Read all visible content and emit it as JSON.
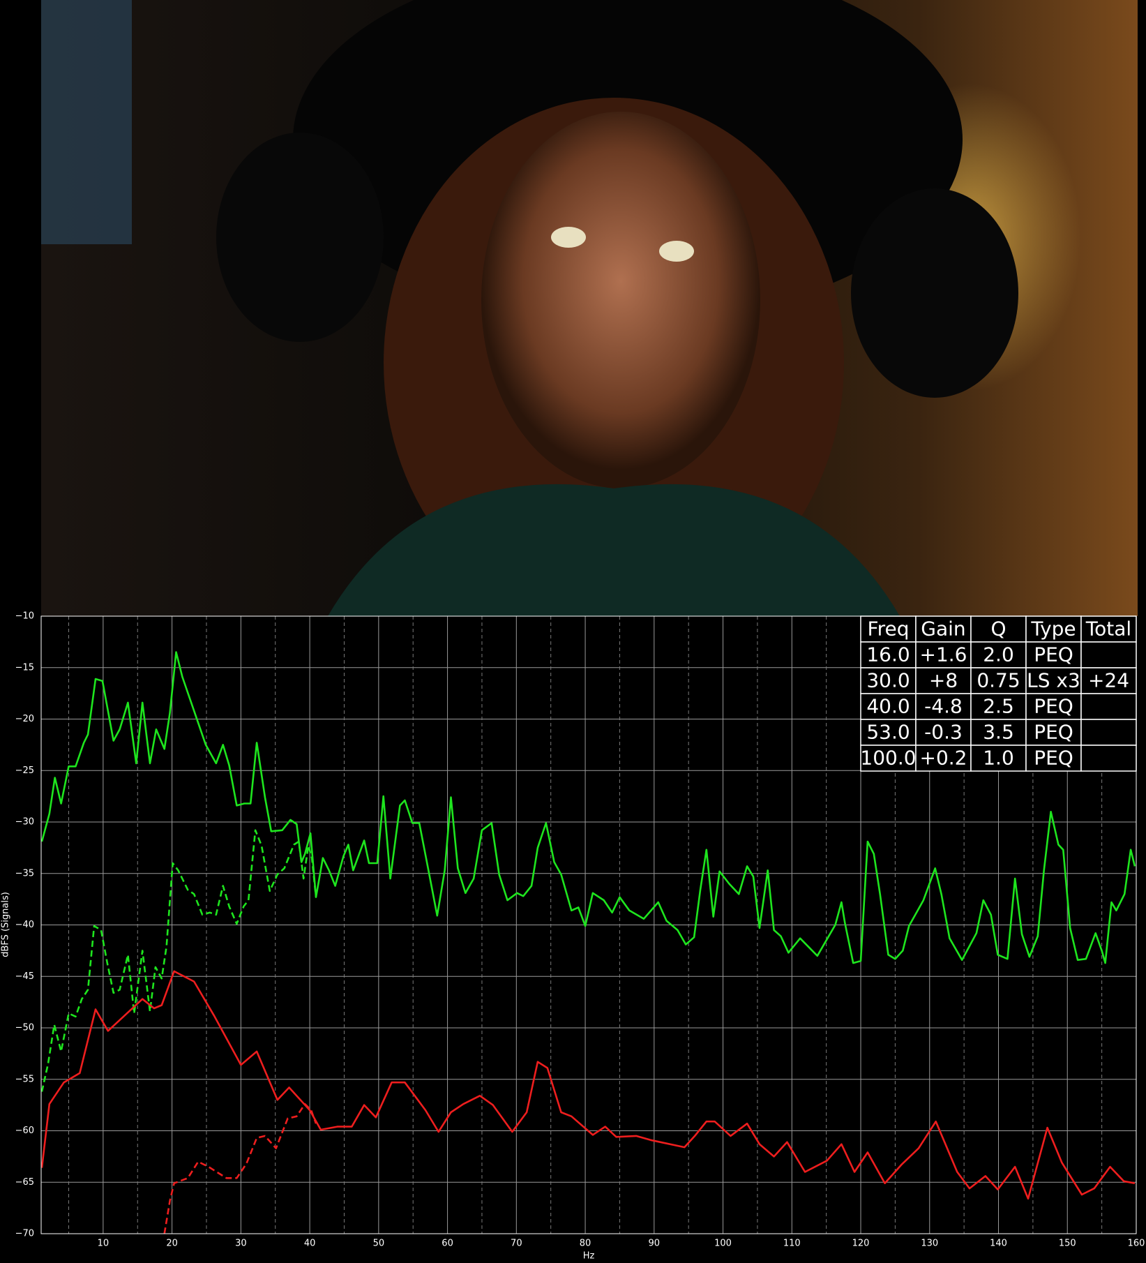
{
  "chart_data": {
    "type": "line",
    "xlabel": "Hz",
    "ylabel": "dBFS (Signals)",
    "xlim": [
      1,
      160
    ],
    "ylim": [
      -70,
      -10
    ],
    "xticks": [
      10,
      20,
      30,
      40,
      50,
      60,
      70,
      80,
      90,
      100,
      110,
      120,
      130,
      140,
      150,
      160
    ],
    "x_minor_ticks": [
      5,
      15,
      25,
      35,
      45,
      55,
      65,
      75,
      85,
      95,
      105,
      115,
      125,
      135,
      145,
      155
    ],
    "yticks": [
      {
        "value": -70,
        "label": "−70"
      },
      {
        "value": -65,
        "label": "−65"
      },
      {
        "value": -60,
        "label": "−60"
      },
      {
        "value": -55,
        "label": "−55"
      },
      {
        "value": -50,
        "label": "−50"
      },
      {
        "value": -45,
        "label": "−45"
      },
      {
        "value": -40,
        "label": "−40"
      },
      {
        "value": -35,
        "label": "−35"
      },
      {
        "value": -30,
        "label": "−30"
      },
      {
        "value": -25,
        "label": "−25"
      },
      {
        "value": -20,
        "label": "−20"
      },
      {
        "value": -15,
        "label": "−15"
      },
      {
        "value": -10,
        "label": "−10"
      }
    ],
    "grid": true,
    "series": [
      {
        "color": "#1ee51e",
        "linestyle": "solid",
        "x": [
          1.1,
          2.2,
          3.0,
          3.9,
          5.0,
          6.0,
          7.2,
          7.8,
          8.9,
          9.9,
          11.5,
          12.4,
          13.6,
          14.8,
          15.7,
          16.8,
          17.7,
          18.9,
          19.7,
          20.6,
          21.5,
          23.2,
          24.9,
          26.4,
          27.4,
          28.3,
          29.4,
          30.5,
          31.4,
          32.3,
          33.5,
          34.4,
          36.0,
          37.2,
          38.1,
          38.8,
          39.3,
          40.1,
          40.9,
          41.9,
          42.8,
          43.7,
          44.9,
          45.6,
          46.3,
          47.9,
          48.6,
          49.8,
          50.7,
          51.7,
          53.1,
          53.8,
          54.9,
          55.9,
          57.0,
          58.5,
          59.6,
          60.5,
          61.5,
          62.6,
          63.8,
          65.0,
          66.4,
          67.5,
          68.7,
          70.1,
          71.0,
          72.2,
          73.1,
          74.3,
          75.5,
          76.5,
          78.0,
          79.0,
          80.0,
          81.1,
          82.7,
          83.9,
          85.0,
          86.4,
          88.5,
          90.6,
          91.8,
          93.4,
          94.6,
          95.8,
          96.7,
          97.6,
          98.6,
          99.5,
          100.9,
          102.3,
          103.5,
          104.4,
          105.3,
          106.5,
          107.4,
          108.4,
          109.5,
          111.2,
          113.7,
          116.3,
          117.2,
          117.7,
          118.9,
          120.0,
          121.0,
          121.9,
          122.8,
          124.0,
          125.0,
          126.1,
          127.0,
          129.1,
          130.8,
          131.7,
          132.9,
          134.7,
          136.8,
          137.8,
          138.9,
          139.9,
          141.3,
          142.4,
          143.4,
          144.5,
          145.7,
          146.6,
          147.6,
          148.7,
          149.4,
          150.4,
          151.5,
          152.7,
          154.1,
          155.0,
          155.5,
          156.4,
          157.1,
          158.3,
          159.2,
          159.8
        ],
        "values": [
          -31.9,
          -29.2,
          -25.7,
          -28.2,
          -24.6,
          -24.6,
          -22.3,
          -21.5,
          -16.1,
          -16.3,
          -22.1,
          -21.0,
          -18.4,
          -24.3,
          -18.4,
          -24.3,
          -21.0,
          -22.9,
          -19.4,
          -13.5,
          -15.9,
          -19.2,
          -22.5,
          -24.3,
          -22.5,
          -24.5,
          -28.4,
          -28.2,
          -28.2,
          -22.3,
          -27.6,
          -30.9,
          -30.8,
          -29.8,
          -30.2,
          -33.9,
          -33.1,
          -31.1,
          -37.3,
          -33.5,
          -34.7,
          -36.2,
          -33.3,
          -32.2,
          -34.7,
          -31.8,
          -34.0,
          -34.0,
          -27.5,
          -35.5,
          -28.4,
          -27.9,
          -30.1,
          -30.1,
          -33.9,
          -39.1,
          -34.7,
          -27.6,
          -34.5,
          -36.9,
          -35.5,
          -30.8,
          -30.1,
          -35.1,
          -37.6,
          -36.9,
          -37.2,
          -36.2,
          -32.5,
          -30.1,
          -33.9,
          -35.1,
          -38.6,
          -38.3,
          -40.1,
          -36.9,
          -37.6,
          -38.8,
          -37.3,
          -38.6,
          -39.4,
          -37.8,
          -39.6,
          -40.5,
          -41.9,
          -41.2,
          -36.6,
          -32.7,
          -39.2,
          -34.8,
          -36.0,
          -37.0,
          -34.3,
          -35.3,
          -40.3,
          -34.7,
          -40.5,
          -41.1,
          -42.7,
          -41.3,
          -43.0,
          -40.0,
          -37.8,
          -39.8,
          -43.7,
          -43.5,
          -31.9,
          -33.1,
          -37.0,
          -42.9,
          -43.3,
          -42.5,
          -40.1,
          -37.6,
          -34.5,
          -37.0,
          -41.3,
          -43.4,
          -40.8,
          -37.6,
          -39.0,
          -42.9,
          -43.3,
          -35.5,
          -40.9,
          -43.1,
          -41.1,
          -34.7,
          -29.0,
          -32.2,
          -32.7,
          -40.3,
          -43.4,
          -43.3,
          -40.8,
          -42.5,
          -43.7,
          -37.8,
          -38.6,
          -37.0,
          -32.7,
          -34.3
        ]
      },
      {
        "color": "#1ee51e",
        "linestyle": "dashed",
        "x": [
          1.1,
          2.0,
          2.9,
          3.9,
          5.0,
          6.0,
          6.9,
          7.8,
          8.7,
          9.7,
          10.6,
          11.5,
          12.4,
          13.6,
          14.5,
          15.7,
          16.8,
          17.6,
          18.5,
          19.2,
          20.1,
          20.9,
          22.3,
          23.2,
          24.4,
          25.5,
          26.4,
          27.4,
          28.3,
          29.4,
          30.4,
          31.1,
          32.1,
          33.0,
          34.2,
          35.3,
          36.3,
          37.7,
          38.4,
          39.1,
          39.8,
          40.3,
          40.9
        ],
        "values": [
          -56.2,
          -53.5,
          -49.7,
          -52.3,
          -48.6,
          -48.9,
          -47.2,
          -46.3,
          -40.1,
          -40.5,
          -43.7,
          -46.6,
          -46.3,
          -42.9,
          -48.6,
          -42.5,
          -48.4,
          -44.1,
          -45.2,
          -42.1,
          -34.0,
          -34.7,
          -36.6,
          -37.0,
          -39.0,
          -38.8,
          -39.0,
          -36.2,
          -38.2,
          -39.9,
          -38.2,
          -37.6,
          -30.8,
          -32.3,
          -36.7,
          -35.1,
          -34.5,
          -32.2,
          -31.9,
          -35.5,
          -32.3,
          -33.5,
          -37.3
        ]
      },
      {
        "color": "#ee1e1e",
        "linestyle": "solid",
        "x": [
          1.1,
          2.2,
          4.3,
          6.6,
          8.9,
          10.7,
          15.7,
          17.4,
          18.5,
          20.3,
          23.2,
          26.1,
          30.0,
          32.3,
          35.3,
          37.0,
          40.0,
          41.6,
          44.0,
          46.1,
          47.9,
          49.6,
          51.9,
          53.8,
          56.8,
          58.7,
          60.5,
          62.3,
          64.7,
          66.6,
          69.4,
          71.5,
          73.1,
          74.5,
          76.5,
          78.0,
          81.1,
          82.9,
          84.5,
          87.4,
          89.5,
          94.4,
          95.9,
          97.6,
          98.8,
          101.1,
          103.5,
          105.3,
          107.4,
          109.3,
          111.9,
          115.1,
          117.2,
          119.1,
          121.0,
          123.5,
          125.9,
          128.4,
          130.9,
          134.0,
          135.8,
          138.1,
          139.9,
          142.4,
          144.3,
          147.1,
          149.2,
          152.1,
          153.9,
          156.2,
          158.2,
          159.8
        ],
        "values": [
          -63.6,
          -57.4,
          -55.3,
          -54.4,
          -48.2,
          -50.3,
          -47.2,
          -48.1,
          -47.8,
          -44.5,
          -45.5,
          -48.8,
          -53.6,
          -52.3,
          -57.0,
          -55.8,
          -58.0,
          -59.9,
          -59.6,
          -59.6,
          -57.5,
          -58.7,
          -55.3,
          -55.3,
          -58.0,
          -60.1,
          -58.2,
          -57.4,
          -56.6,
          -57.5,
          -60.1,
          -58.2,
          -53.3,
          -53.9,
          -58.2,
          -58.6,
          -60.4,
          -59.6,
          -60.6,
          -60.5,
          -60.9,
          -61.6,
          -60.5,
          -59.1,
          -59.1,
          -60.5,
          -59.3,
          -61.3,
          -62.5,
          -61.1,
          -64.0,
          -62.9,
          -61.3,
          -64.0,
          -62.1,
          -65.1,
          -63.3,
          -61.7,
          -59.1,
          -64.0,
          -65.6,
          -64.4,
          -65.7,
          -63.5,
          -66.6,
          -59.7,
          -63.1,
          -66.2,
          -65.6,
          -63.5,
          -64.9,
          -65.1
        ]
      },
      {
        "color": "#ee1e1e",
        "linestyle": "dashed",
        "x": [
          18.9,
          19.7,
          20.3,
          22.3,
          23.8,
          25.3,
          27.9,
          29.4,
          30.8,
          32.3,
          33.5,
          35.1,
          36.8,
          38.1,
          39.3,
          40.2,
          40.9
        ],
        "values": [
          -70,
          -66.8,
          -65.1,
          -64.6,
          -63.0,
          -63.5,
          -64.6,
          -64.6,
          -63.2,
          -60.7,
          -60.5,
          -61.7,
          -58.8,
          -58.6,
          -57.4,
          -58.0,
          -59.3
        ]
      }
    ],
    "table": {
      "header": [
        "Freq",
        "Gain",
        "Q",
        "Type",
        "Total"
      ],
      "rows": [
        {
          "freq": "16.0",
          "gain": "+1.6",
          "q": "2.0",
          "type": "PEQ"
        },
        {
          "freq": "30.0",
          "gain": "+8",
          "q": "0.75",
          "type": "LS x3",
          "total": "+24"
        },
        {
          "freq": "40.0",
          "gain": "-4.8",
          "q": "2.5",
          "type": "PEQ"
        },
        {
          "freq": "53.0",
          "gain": "-0.3",
          "q": "3.5",
          "type": "PEQ"
        },
        {
          "freq": "100.0",
          "gain": "+0.2",
          "q": "1.0",
          "type": "PEQ"
        }
      ]
    }
  }
}
